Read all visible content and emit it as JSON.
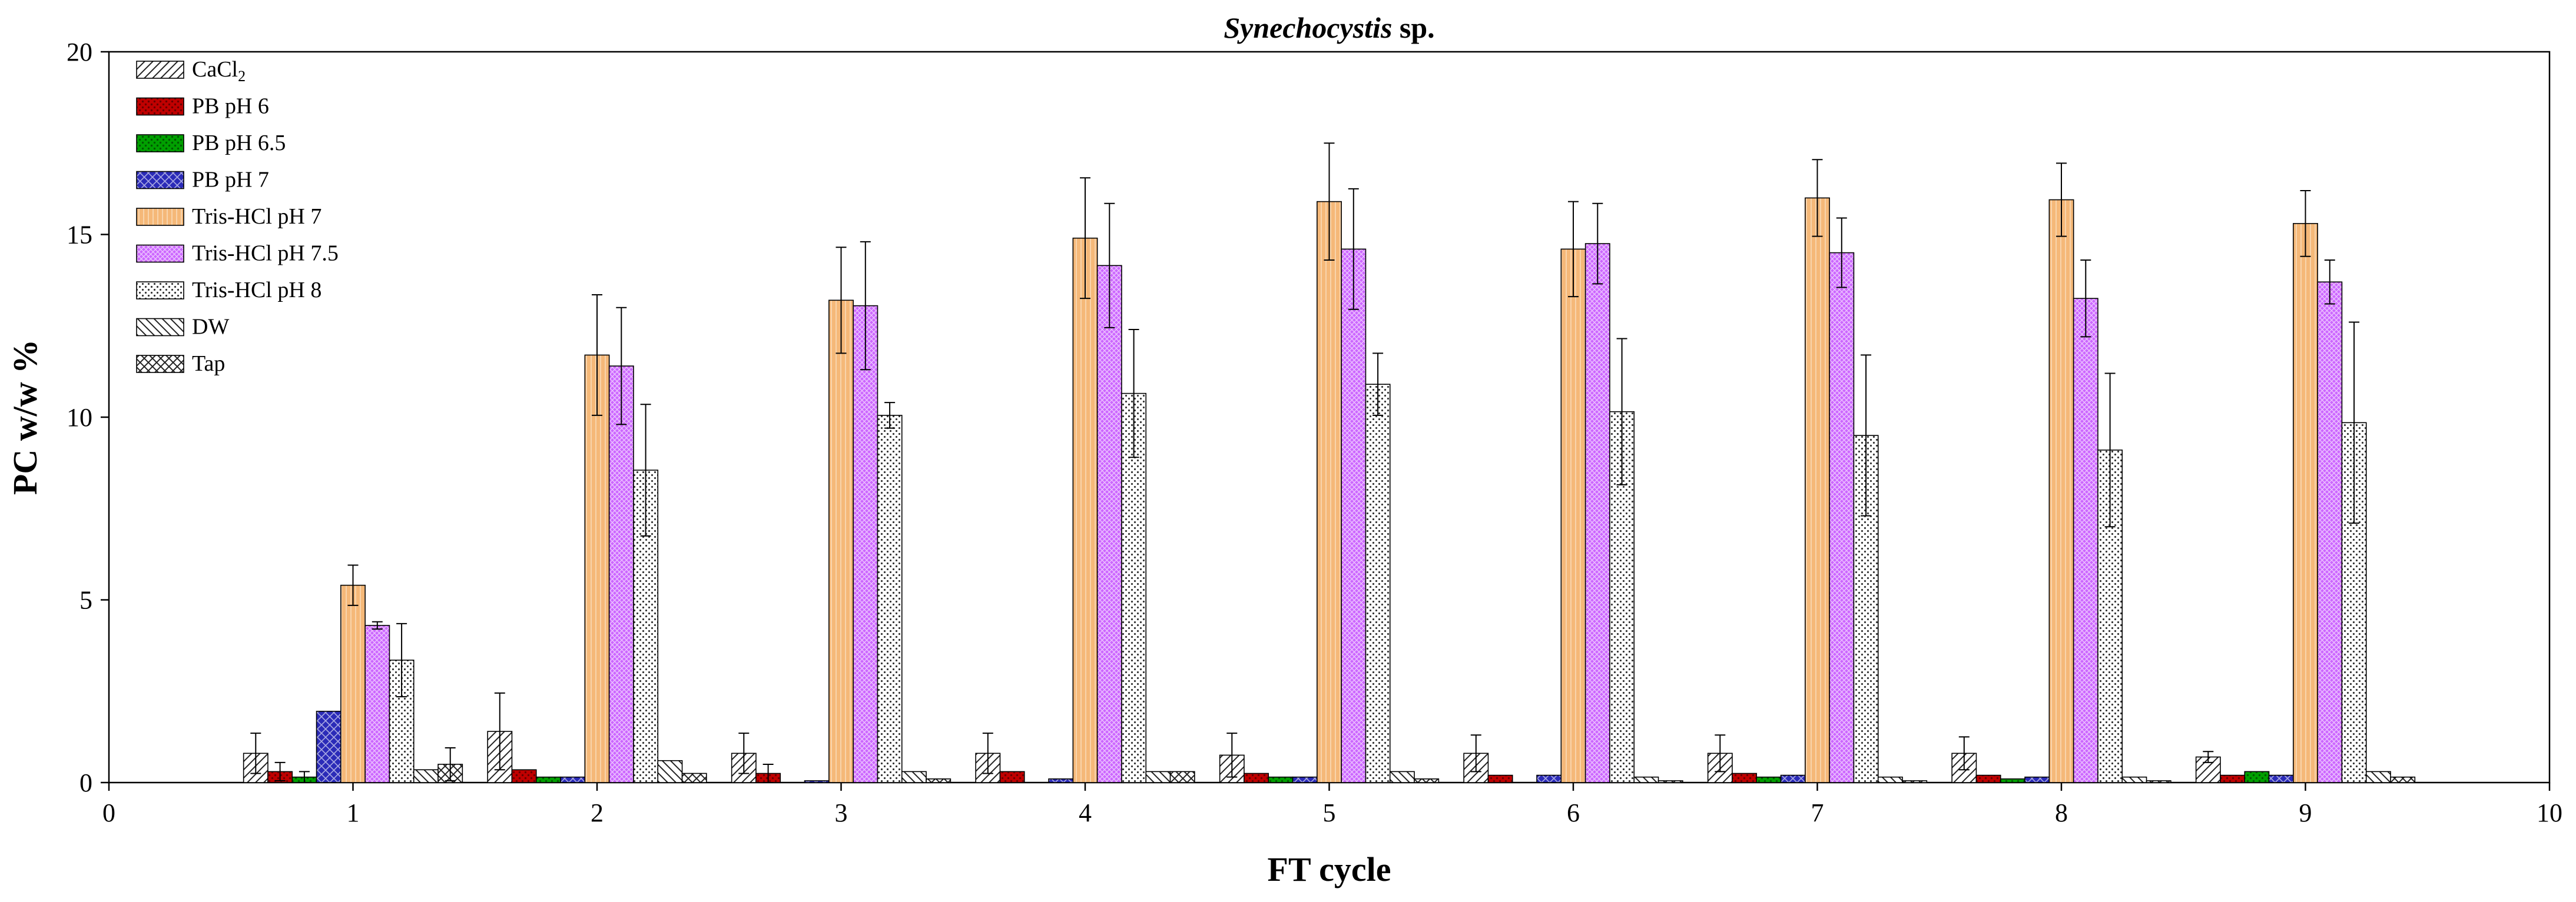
{
  "chart_data": {
    "type": "bar",
    "title": "Synechocystis sp.",
    "title_italic_part": "Synechocystis",
    "title_rest": " sp.",
    "xlabel": "FT cycle",
    "ylabel": "PC w/w %",
    "xlim": [
      0,
      10
    ],
    "ylim": [
      0,
      20
    ],
    "x_ticks": [
      "0",
      "1",
      "2",
      "3",
      "4",
      "5",
      "6",
      "7",
      "8",
      "9",
      "10"
    ],
    "y_ticks": [
      "0",
      "5",
      "10",
      "15",
      "20"
    ],
    "categories": [
      1,
      2,
      3,
      4,
      5,
      6,
      7,
      8,
      9
    ],
    "legend_position": "top-left",
    "series": [
      {
        "name": "CaCl2",
        "label_main": "CaCl",
        "label_sub": "2",
        "color": "#ffffff",
        "pattern": "diagonal",
        "values": [
          0.8,
          1.4,
          0.8,
          0.8,
          0.75,
          0.8,
          0.8,
          0.8,
          0.7
        ],
        "errors": [
          0.55,
          1.05,
          0.55,
          0.55,
          0.6,
          0.5,
          0.5,
          0.45,
          0.15
        ]
      },
      {
        "name": "PB pH 6",
        "color": "#c00000",
        "pattern": "dots-dark",
        "values": [
          0.3,
          0.35,
          0.25,
          0.3,
          0.25,
          0.2,
          0.25,
          0.2,
          0.2
        ],
        "errors": [
          0.25,
          0.0,
          0.25,
          0.0,
          0.0,
          0.0,
          0.0,
          0.0,
          0.0
        ]
      },
      {
        "name": "PB pH 6.5",
        "color": "#00a000",
        "pattern": "dots-dark",
        "values": [
          0.15,
          0.15,
          0.0,
          0.0,
          0.15,
          0.0,
          0.15,
          0.1,
          0.3
        ],
        "errors": [
          0.15,
          0.0,
          0.0,
          0.0,
          0.0,
          0.0,
          0.0,
          0.0,
          0.0
        ]
      },
      {
        "name": "PB pH 7",
        "color": "#2b2bb8",
        "pattern": "cross",
        "values": [
          1.95,
          0.15,
          0.05,
          0.1,
          0.15,
          0.2,
          0.2,
          0.15,
          0.2
        ],
        "errors": [
          0.0,
          0.0,
          0.0,
          0.0,
          0.0,
          0.0,
          0.0,
          0.0,
          0.0
        ]
      },
      {
        "name": "Tris-HCl pH 7",
        "color": "#f5b878",
        "pattern": "vlines",
        "values": [
          5.4,
          11.7,
          13.2,
          14.9,
          15.9,
          14.6,
          16.0,
          15.95,
          15.3
        ],
        "errors": [
          0.55,
          1.65,
          1.45,
          1.65,
          1.6,
          1.3,
          1.05,
          1.0,
          0.9
        ]
      },
      {
        "name": "Tris-HCl pH 7.5",
        "color": "#cc66ff",
        "pattern": "hatch",
        "values": [
          4.3,
          11.4,
          13.05,
          14.15,
          14.6,
          14.75,
          14.5,
          13.25,
          13.7
        ],
        "errors": [
          0.1,
          1.6,
          1.75,
          1.7,
          1.65,
          1.1,
          0.95,
          1.05,
          0.6
        ]
      },
      {
        "name": "Tris-HCl pH 8",
        "color": "#ffffff",
        "pattern": "dots-light",
        "values": [
          3.35,
          8.55,
          10.05,
          10.65,
          10.9,
          10.15,
          9.5,
          9.1,
          9.85
        ],
        "errors": [
          1.0,
          1.8,
          0.35,
          1.75,
          0.85,
          2.0,
          2.2,
          2.1,
          2.75
        ]
      },
      {
        "name": "DW",
        "color": "#ffffff",
        "pattern": "diagonal-back",
        "values": [
          0.35,
          0.6,
          0.3,
          0.3,
          0.3,
          0.15,
          0.15,
          0.15,
          0.3
        ],
        "errors": [
          0.0,
          0.0,
          0.0,
          0.0,
          0.0,
          0.0,
          0.0,
          0.0,
          0.0
        ]
      },
      {
        "name": "Tap",
        "color": "#ffffff",
        "pattern": "crosshatch",
        "values": [
          0.5,
          0.25,
          0.1,
          0.3,
          0.1,
          0.05,
          0.05,
          0.05,
          0.15
        ],
        "errors": [
          0.45,
          0.0,
          0.0,
          0.0,
          0.0,
          0.0,
          0.0,
          0.0,
          0.0
        ]
      }
    ]
  }
}
